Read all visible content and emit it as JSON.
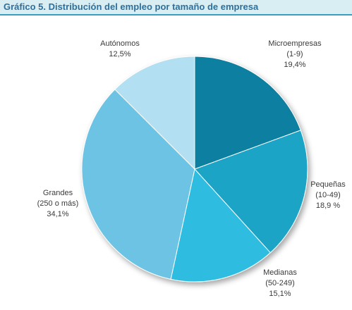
{
  "header": {
    "title": "Gráfico 5. Distribución del empleo por tamaño de empresa"
  },
  "chart_data": {
    "type": "pie",
    "title": "Gráfico 5. Distribución del empleo por tamaño de empresa",
    "slices": [
      {
        "label_lines": [
          "Microempresas",
          "(1-9)"
        ],
        "value": 19.4,
        "value_text": "19,4%",
        "color": "#0e7fa0"
      },
      {
        "label_lines": [
          "Pequeñas",
          "(10-49)"
        ],
        "value": 18.9,
        "value_text": "18,9 %",
        "color": "#1aa4c6"
      },
      {
        "label_lines": [
          "Medianas",
          "(50-249)"
        ],
        "value": 15.1,
        "value_text": "15,1%",
        "color": "#2fbce0"
      },
      {
        "label_lines": [
          "Grandes",
          "(250 o más)"
        ],
        "value": 34.1,
        "value_text": "34,1%",
        "color": "#6cc3e3"
      },
      {
        "label_lines": [
          "Autónomos"
        ],
        "value": 12.5,
        "value_text": "12,5%",
        "color": "#b2dff1"
      }
    ]
  }
}
